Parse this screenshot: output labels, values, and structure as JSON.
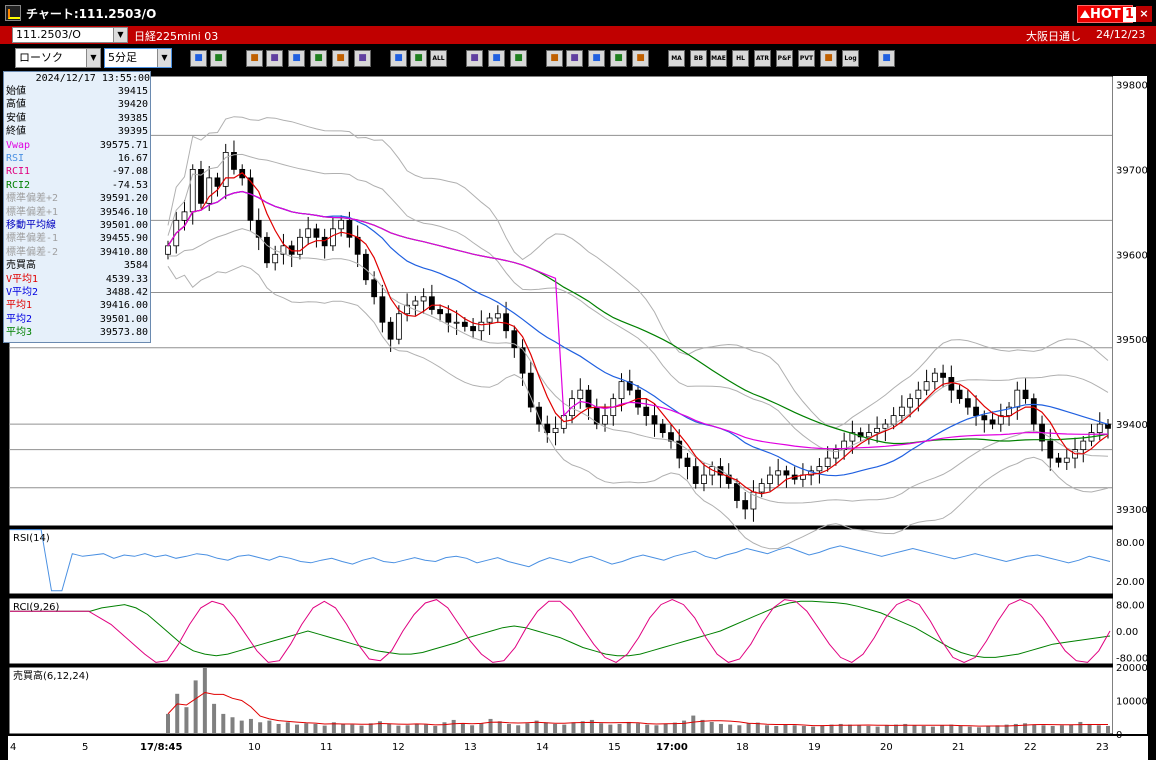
{
  "window": {
    "title": "チャート:111.2503/O",
    "hot_label": "HOT",
    "hot_number": "1",
    "close_glyph": "×"
  },
  "instrument_bar": {
    "symbol": "111.2503/O",
    "name": "日経225mini 03",
    "session": "大阪日通し",
    "date": "24/12/23"
  },
  "toolbar": {
    "chart_type": "ローソク",
    "interval": "5分足",
    "buttons": [
      "zoom",
      "crosshair",
      "draw",
      "fill",
      "select",
      "arrow",
      "notes",
      "trash",
      "box",
      "mark",
      "ALL",
      "erase",
      "brush",
      "palette",
      "print",
      "search",
      "chart1",
      "flag",
      "blank",
      "MA",
      "BB",
      "MAE",
      "HL",
      "ATR",
      "PAR",
      "PVT",
      "box2",
      "Log",
      "exit"
    ],
    "button_labels": {
      "ALL": "ALL",
      "MA": "MA",
      "BB": "BB",
      "MAE": "MAE",
      "HL": "HL",
      "ATR": "ATR",
      "PAR": "P&F",
      "PVT": "PVT",
      "Log": "Log"
    }
  },
  "info_panel": {
    "datetime": "2024/12/17  13:55:00",
    "rows": [
      {
        "label": "始値",
        "value": "39415",
        "color": "#000000"
      },
      {
        "label": "高値",
        "value": "39420",
        "color": "#000000"
      },
      {
        "label": "安値",
        "value": "39385",
        "color": "#000000"
      },
      {
        "label": "終値",
        "value": "39395",
        "color": "#000000"
      },
      {
        "label": "Vwap",
        "value": "39575.71",
        "color": "#e000e0"
      },
      {
        "label": "RSI",
        "value": "16.67",
        "color": "#4a90e2"
      },
      {
        "label": "RCI1",
        "value": "-97.08",
        "color": "#e00080"
      },
      {
        "label": "RCI2",
        "value": "-74.53",
        "color": "#008000"
      },
      {
        "label": "標準偏差+2",
        "value": "39591.20",
        "color": "#a0a0a0"
      },
      {
        "label": "標準偏差+1",
        "value": "39546.10",
        "color": "#a0a0a0"
      },
      {
        "label": "移動平均線",
        "value": "39501.00",
        "color": "#0000c0"
      },
      {
        "label": "標準偏差-1",
        "value": "39455.90",
        "color": "#a0a0a0"
      },
      {
        "label": "標準偏差-2",
        "value": "39410.80",
        "color": "#a0a0a0"
      },
      {
        "label": "売買高",
        "value": "3584",
        "color": "#000000"
      },
      {
        "label": "V平均1",
        "value": "4539.33",
        "color": "#e00000"
      },
      {
        "label": "V平均2",
        "value": "3488.42",
        "color": "#0000e0"
      },
      {
        "label": "平均1",
        "value": "39416.00",
        "color": "#e00000"
      },
      {
        "label": "平均2",
        "value": "39501.00",
        "color": "#0000e0"
      },
      {
        "label": "平均3",
        "value": "39573.80",
        "color": "#008000"
      }
    ]
  },
  "panels": {
    "rsi_label": "RSI(14)",
    "rci_label": "RCI(9,26)",
    "volume_label": "売買高(6,12,24)"
  },
  "chart_data": [
    {
      "type": "candlestick",
      "title": "",
      "ylim": [
        39280,
        39810
      ],
      "y_ticks": [
        "39800",
        "39700",
        "39600",
        "39500",
        "39400",
        "39300"
      ],
      "horizontal_lines": [
        39740,
        39640,
        39555,
        39490,
        39370,
        39400,
        39325
      ],
      "closes": [
        39610,
        39640,
        39650,
        39700,
        39660,
        39690,
        39680,
        39720,
        39700,
        39690,
        39640,
        39620,
        39590,
        39600,
        39610,
        39600,
        39620,
        39630,
        39620,
        39610,
        39630,
        39640,
        39620,
        39600,
        39570,
        39550,
        39520,
        39500,
        39530,
        39540,
        39545,
        39550,
        39535,
        39530,
        39520,
        39520,
        39515,
        39510,
        39520,
        39525,
        39530,
        39510,
        39490,
        39460,
        39420,
        39400,
        39390,
        39395,
        39410,
        39430,
        39440,
        39420,
        39400,
        39410,
        39430,
        39450,
        39440,
        39420,
        39410,
        39400,
        39390,
        39380,
        39360,
        39350,
        39330,
        39340,
        39350,
        39340,
        39330,
        39310,
        39300,
        39320,
        39330,
        39340,
        39345,
        39340,
        39335,
        39340,
        39345,
        39350,
        39360,
        39370,
        39380,
        39390,
        39385,
        39390,
        39395,
        39400,
        39410,
        39420,
        39430,
        39440,
        39450,
        39460,
        39455,
        39440,
        39430,
        39420,
        39410,
        39405,
        39400,
        39410,
        39420,
        39440,
        39430,
        39400,
        39380,
        39360,
        39355,
        39360,
        39370,
        39380,
        39390,
        39400,
        39395
      ],
      "bb_upper_approx": [
        39700,
        39720,
        39730,
        39740,
        39745,
        39750,
        39755,
        39740,
        39720,
        39690,
        39660,
        39650,
        39640,
        39620,
        39610,
        39600,
        39590,
        39580,
        39570,
        39560
      ],
      "ma_short_color": "#e00000",
      "ma_mid_color": "#2060e0",
      "ma_long_color": "#008000",
      "vwap_color": "#e000e0",
      "bb_color": "#b0b0b0"
    },
    {
      "type": "line",
      "title": "RSI(14)",
      "ylim": [
        0,
        100
      ],
      "y_ticks": [
        "80.00",
        "20.00"
      ],
      "values": [
        99,
        99,
        99,
        99,
        5,
        5,
        62,
        58,
        60,
        62,
        55,
        60,
        58,
        62,
        57,
        60,
        55,
        58,
        62,
        60,
        55,
        52,
        58,
        60,
        56,
        52,
        58,
        55,
        50,
        48,
        52,
        55,
        50,
        46,
        52,
        56,
        50,
        48,
        52,
        56,
        52,
        50,
        56,
        58,
        55,
        48,
        52,
        56,
        50,
        46,
        42,
        50,
        56,
        52,
        48,
        54,
        58,
        52,
        46,
        50,
        56,
        60,
        56,
        52,
        58,
        62,
        66,
        58,
        54,
        60,
        64,
        70,
        66,
        62,
        68,
        72,
        66,
        60,
        64,
        70,
        74,
        70,
        66,
        62,
        58,
        62,
        66,
        70,
        66,
        62,
        58,
        54,
        58,
        62,
        58,
        54,
        50,
        54,
        58,
        60,
        56,
        52,
        48,
        52,
        58,
        54,
        50
      ]
    },
    {
      "type": "line",
      "title": "RCI(9,26)",
      "ylim": [
        -100,
        100
      ],
      "y_ticks": [
        "80.00",
        "0.00",
        "-80.00"
      ],
      "series": [
        {
          "values": [
            60,
            60,
            60,
            60,
            60,
            60,
            60,
            60,
            40,
            20,
            -10,
            -40,
            -70,
            -95,
            -90,
            -40,
            20,
            70,
            90,
            80,
            40,
            -10,
            -60,
            -95,
            -90,
            -40,
            20,
            70,
            90,
            70,
            20,
            -40,
            -85,
            -90,
            -60,
            0,
            50,
            85,
            95,
            70,
            20,
            -30,
            -70,
            -95,
            -90,
            -50,
            10,
            60,
            90,
            90,
            60,
            10,
            -40,
            -80,
            -95,
            -70,
            -20,
            40,
            80,
            95,
            80,
            40,
            -20,
            -70,
            -95,
            -85,
            -40,
            20,
            70,
            95,
            90,
            60,
            10,
            -40,
            -80,
            -95,
            -70,
            -20,
            40,
            80,
            95,
            80,
            30,
            -30,
            -80,
            -95,
            -80,
            -30,
            30,
            80,
            95,
            80,
            40,
            -10,
            -60,
            -90,
            -95,
            -60,
            0
          ]
        },
        {
          "values": [
            60,
            60,
            60,
            60,
            60,
            60,
            60,
            60,
            70,
            75,
            80,
            70,
            50,
            20,
            -10,
            -40,
            -60,
            -70,
            -75,
            -70,
            -60,
            -50,
            -40,
            -30,
            -20,
            -10,
            0,
            -10,
            -20,
            -30,
            -40,
            -50,
            -60,
            -65,
            -70,
            -70,
            -65,
            -55,
            -45,
            -35,
            -20,
            -10,
            0,
            10,
            15,
            10,
            0,
            -10,
            -20,
            -35,
            -50,
            -60,
            -70,
            -75,
            -75,
            -70,
            -60,
            -50,
            -40,
            -30,
            -20,
            -10,
            0,
            15,
            30,
            45,
            60,
            75,
            85,
            90,
            90,
            88,
            86,
            82,
            75,
            65,
            55,
            40,
            25,
            10,
            -10,
            -30,
            -50,
            -65,
            -75,
            -80,
            -80,
            -75,
            -70,
            -60,
            -50,
            -40,
            -35,
            -30,
            -25,
            -20,
            -15
          ]
        }
      ]
    },
    {
      "type": "bar",
      "title": "売買高(6,12,24)",
      "ylim": [
        0,
        20000
      ],
      "y_ticks": [
        "20000",
        "10000",
        "0"
      ],
      "values": [
        6000,
        12000,
        8000,
        16000,
        20000,
        9000,
        6000,
        5000,
        4000,
        4500,
        3500,
        4000,
        3000,
        3500,
        2800,
        3200,
        3000,
        2500,
        3500,
        3000,
        2800,
        2500,
        3200,
        3800,
        3000,
        2500,
        2600,
        3000,
        2800,
        2400,
        3500,
        4200,
        3000,
        2600,
        3200,
        4500,
        3800,
        3000,
        2600,
        3200,
        4000,
        3500,
        3000,
        2800,
        3500,
        3800,
        4200,
        3200,
        2800,
        3000,
        3600,
        3200,
        2800,
        2600,
        3000,
        3400,
        4000,
        5500,
        4200,
        3600,
        3000,
        2800,
        2600,
        3200,
        3400,
        2600,
        2400,
        2800,
        2600,
        2400,
        2200,
        2600,
        2800,
        3000,
        2800,
        2600,
        2400,
        2200,
        2600,
        2800,
        3000,
        2600,
        2400,
        2200,
        2600,
        2800,
        2400,
        2200,
        2000,
        2400,
        2600,
        2800,
        3000,
        3200,
        2800,
        2600,
        2400,
        2600,
        2800,
        3600,
        3000,
        2600,
        2400
      ]
    }
  ],
  "x_axis": {
    "labels": [
      "4",
      "5",
      "17/8:45",
      "10",
      "11",
      "12",
      "13",
      "14",
      "15",
      "17:00",
      "18",
      "19",
      "20",
      "21",
      "22",
      "23"
    ],
    "bold_labels": [
      "17/8:45",
      "17:00"
    ]
  }
}
